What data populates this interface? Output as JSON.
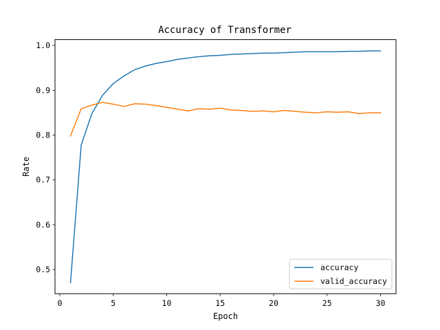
{
  "chart_data": {
    "type": "line",
    "title": "Accuracy of Transformer",
    "xlabel": "Epoch",
    "ylabel": "Rate",
    "xlim": [
      -0.45,
      31.45
    ],
    "ylim": [
      0.4462,
      1.0131
    ],
    "xticks": [
      0,
      5,
      10,
      15,
      20,
      25,
      30
    ],
    "yticks": [
      0.5,
      0.6,
      0.7,
      0.8,
      0.9,
      1.0
    ],
    "ytick_labels": [
      "0.5",
      "0.6",
      "0.7",
      "0.8",
      "0.9",
      "1.0"
    ],
    "grid": false,
    "legend_position": "lower-right",
    "x": [
      1,
      2,
      3,
      4,
      5,
      6,
      7,
      8,
      9,
      10,
      11,
      12,
      13,
      14,
      15,
      16,
      17,
      18,
      19,
      20,
      21,
      22,
      23,
      24,
      25,
      26,
      27,
      28,
      29,
      30
    ],
    "series": [
      {
        "name": "accuracy",
        "color": "#1f77b4",
        "values": [
          0.471,
          0.778,
          0.848,
          0.889,
          0.915,
          0.932,
          0.946,
          0.954,
          0.96,
          0.964,
          0.969,
          0.972,
          0.975,
          0.977,
          0.978,
          0.98,
          0.981,
          0.982,
          0.983,
          0.983,
          0.984,
          0.985,
          0.986,
          0.986,
          0.986,
          0.986,
          0.987,
          0.987,
          0.988,
          0.988
        ]
      },
      {
        "name": "valid_accuracy",
        "color": "#ff7f0e",
        "values": [
          0.798,
          0.859,
          0.867,
          0.873,
          0.869,
          0.864,
          0.87,
          0.869,
          0.866,
          0.862,
          0.858,
          0.854,
          0.859,
          0.858,
          0.86,
          0.856,
          0.855,
          0.853,
          0.854,
          0.852,
          0.855,
          0.853,
          0.851,
          0.85,
          0.852,
          0.851,
          0.852,
          0.848,
          0.85,
          0.85
        ]
      }
    ]
  }
}
